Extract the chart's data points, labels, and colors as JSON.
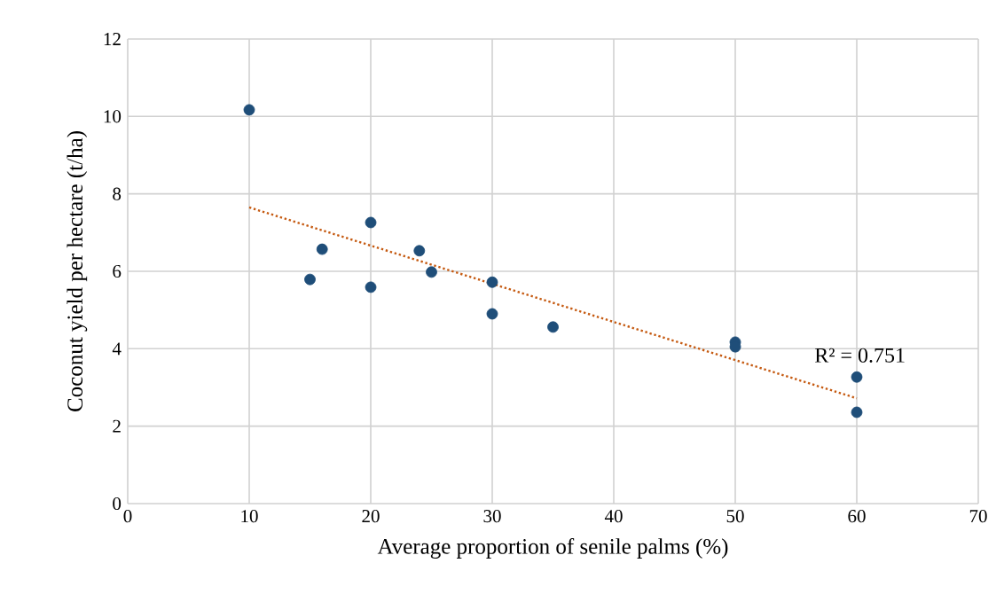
{
  "chart_data": {
    "type": "scatter",
    "xlabel": "Average proportion of senile palms (%)",
    "ylabel": "Coconut yield per hectare (t/ha)",
    "xlim": [
      0,
      70
    ],
    "ylim": [
      0,
      12
    ],
    "xticks": [
      0,
      10,
      20,
      30,
      40,
      50,
      60,
      70
    ],
    "yticks": [
      0,
      2,
      4,
      6,
      8,
      10,
      12
    ],
    "grid": true,
    "series": [
      {
        "color": "#1f4e79",
        "marker": "circle",
        "x": [
          10,
          15,
          16,
          20,
          20,
          24,
          25,
          30,
          30,
          35,
          50,
          50,
          60,
          60
        ],
        "values": [
          10.17,
          5.79,
          6.57,
          7.26,
          5.59,
          6.53,
          5.98,
          5.72,
          4.9,
          4.56,
          4.17,
          4.05,
          3.27,
          2.36
        ]
      },
      {
        "type": "line",
        "color": "#c55a11",
        "marker": "none",
        "line_style": "dotted",
        "x": [
          10,
          60
        ],
        "values": [
          7.65,
          2.72
        ]
      }
    ],
    "annotations": [
      "R² = 0.751"
    ]
  }
}
